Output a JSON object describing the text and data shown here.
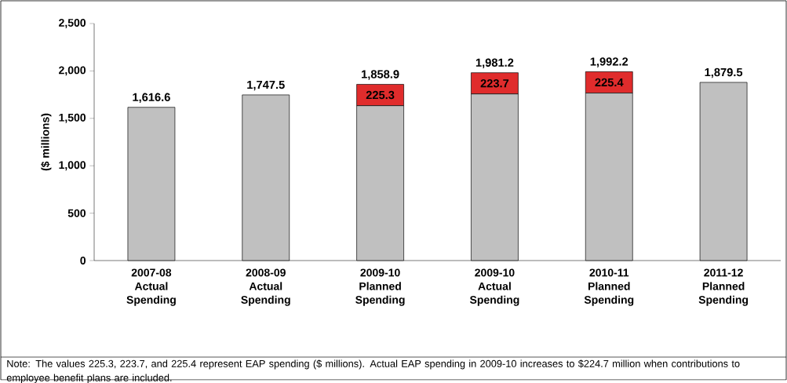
{
  "chart_data": {
    "type": "bar",
    "stacked": true,
    "categories": [
      "2007-08 Actual Spending",
      "2008-09 Actual Spending",
      "2009-10 Planned Spending",
      "2009-10 Actual Spending",
      "2010-11 Planned Spending",
      "2011-12 Planned Spending"
    ],
    "series": [
      {
        "color": "#c0c0c0",
        "values": [
          1616.6,
          1747.5,
          1633.6,
          1757.5,
          1766.8,
          1879.5
        ]
      },
      {
        "color": "#e02c2c",
        "values": [
          null,
          null,
          225.3,
          223.7,
          225.4,
          null
        ],
        "value_labels": [
          null,
          null,
          "225.3",
          "223.7",
          "225.4",
          null
        ]
      }
    ],
    "totals": [
      "1,616.6",
      "1,747.5",
      "1,858.9",
      "1,981.2",
      "1,992.2",
      "1,879.5"
    ],
    "ylabel": "($ millions)",
    "ylim": [
      0,
      2500
    ],
    "yticks": [
      {
        "value": 0,
        "label": "0"
      },
      {
        "value": 500,
        "label": "500"
      },
      {
        "value": 1000,
        "label": "1,000"
      },
      {
        "value": 1500,
        "label": "1,500"
      },
      {
        "value": 2000,
        "label": "2,000"
      },
      {
        "value": 2500,
        "label": "2,500"
      }
    ],
    "annotations": [
      "Note: The values 225.3, 223.7, and 225.4 represent EAP spending ($ millions). Actual EAP spending in 2009-10 increases to $224.7 million when contributions to employee benefit plans are included."
    ]
  }
}
